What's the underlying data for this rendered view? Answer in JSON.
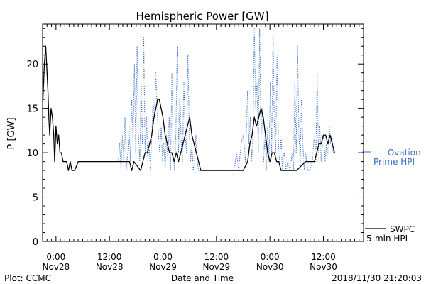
{
  "chart_data": {
    "type": "line",
    "title": "Hemispheric Power [GW]",
    "ylabel": "P [GW]",
    "xlabel": "Date and Time",
    "ylim": [
      0,
      24.5
    ],
    "xlim_hours_from_nov28_0000": [
      -3,
      69
    ],
    "y_ticks": [
      "0",
      "5",
      "10",
      "15",
      "20"
    ],
    "x_ticks": [
      {
        "time": "0:00",
        "date": "Nov28"
      },
      {
        "time": "12:00",
        "date": "Nov28"
      },
      {
        "time": "0:00",
        "date": "Nov29"
      },
      {
        "time": "12:00",
        "date": "Nov29"
      },
      {
        "time": "0:00",
        "date": "Nov30"
      },
      {
        "time": "12:00",
        "date": "Nov30"
      }
    ],
    "series": [
      {
        "name": "SWPC 5-min HPI",
        "legend_line1": "SWPC",
        "legend_line2": "5-min HPI",
        "color": "#000000",
        "style": "solid",
        "points_hours_gw": [
          [
            -3.0,
            15
          ],
          [
            -2.6,
            20
          ],
          [
            -2.3,
            22
          ],
          [
            -2.0,
            19
          ],
          [
            -1.8,
            17
          ],
          [
            -1.6,
            14
          ],
          [
            -1.4,
            12
          ],
          [
            -1.1,
            15
          ],
          [
            -0.8,
            14
          ],
          [
            -0.5,
            12
          ],
          [
            -0.3,
            9
          ],
          [
            0.0,
            13
          ],
          [
            0.3,
            11
          ],
          [
            0.6,
            12
          ],
          [
            0.9,
            10
          ],
          [
            1.2,
            10
          ],
          [
            1.6,
            9
          ],
          [
            2.0,
            9
          ],
          [
            2.4,
            9
          ],
          [
            2.8,
            8
          ],
          [
            3.2,
            9
          ],
          [
            3.6,
            8
          ],
          [
            4.2,
            8
          ],
          [
            5.0,
            9
          ],
          [
            8.0,
            9
          ],
          [
            12.0,
            9
          ],
          [
            16.5,
            9
          ],
          [
            17.0,
            8
          ],
          [
            17.5,
            9
          ],
          [
            19.0,
            8
          ],
          [
            20.0,
            10
          ],
          [
            20.5,
            10
          ],
          [
            21.0,
            11
          ],
          [
            21.5,
            12
          ],
          [
            22.0,
            14
          ],
          [
            22.4,
            15
          ],
          [
            22.8,
            16
          ],
          [
            23.2,
            16
          ],
          [
            23.6,
            15
          ],
          [
            24.0,
            14
          ],
          [
            24.5,
            12
          ],
          [
            25.0,
            11
          ],
          [
            25.5,
            10
          ],
          [
            26.0,
            10
          ],
          [
            26.5,
            9
          ],
          [
            27.0,
            10
          ],
          [
            27.5,
            9
          ],
          [
            28.0,
            10
          ],
          [
            28.5,
            11
          ],
          [
            29.0,
            12
          ],
          [
            29.5,
            13
          ],
          [
            30.0,
            14
          ],
          [
            30.5,
            12
          ],
          [
            31.0,
            11
          ],
          [
            31.5,
            10
          ],
          [
            32.0,
            9
          ],
          [
            32.5,
            8
          ],
          [
            34.0,
            8
          ],
          [
            36.0,
            8
          ],
          [
            38.0,
            8
          ],
          [
            40.0,
            8
          ],
          [
            42.0,
            8
          ],
          [
            43.0,
            9
          ],
          [
            43.5,
            11
          ],
          [
            44.0,
            12
          ],
          [
            44.5,
            14
          ],
          [
            45.0,
            13
          ],
          [
            45.5,
            14
          ],
          [
            46.0,
            15
          ],
          [
            46.5,
            14
          ],
          [
            47.0,
            12
          ],
          [
            47.5,
            10
          ],
          [
            48.0,
            9
          ],
          [
            48.5,
            10
          ],
          [
            49.0,
            10
          ],
          [
            49.5,
            9
          ],
          [
            50.0,
            9
          ],
          [
            50.5,
            8
          ],
          [
            52.0,
            8
          ],
          [
            54.0,
            8
          ],
          [
            56.0,
            9
          ],
          [
            58.0,
            9
          ],
          [
            58.5,
            10
          ],
          [
            59.0,
            11
          ],
          [
            59.5,
            11
          ],
          [
            60.0,
            12
          ],
          [
            60.5,
            12
          ],
          [
            61.0,
            11
          ],
          [
            61.5,
            12
          ],
          [
            62.0,
            11
          ],
          [
            62.5,
            10
          ]
        ]
      },
      {
        "name": "Ovation Prime HPI",
        "legend_line1": "— Ovation",
        "legend_line2": "Prime HPI",
        "color": "#3a6fc4",
        "style": "dotted",
        "points_hours_gw": [
          [
            14.0,
            9
          ],
          [
            14.3,
            11
          ],
          [
            14.6,
            8
          ],
          [
            14.9,
            12
          ],
          [
            15.2,
            9
          ],
          [
            15.5,
            14
          ],
          [
            15.8,
            8
          ],
          [
            16.1,
            10
          ],
          [
            16.4,
            13
          ],
          [
            16.7,
            9
          ],
          [
            17.0,
            16
          ],
          [
            17.3,
            11
          ],
          [
            17.6,
            20
          ],
          [
            17.9,
            10
          ],
          [
            18.2,
            22
          ],
          [
            18.5,
            12
          ],
          [
            18.8,
            9
          ],
          [
            19.1,
            18
          ],
          [
            19.4,
            11
          ],
          [
            19.7,
            23
          ],
          [
            20.0,
            10
          ],
          [
            20.3,
            14
          ],
          [
            20.6,
            9
          ],
          [
            20.9,
            11
          ],
          [
            21.2,
            8
          ],
          [
            21.5,
            12
          ],
          [
            21.8,
            16
          ],
          [
            22.1,
            14
          ],
          [
            22.4,
            19
          ],
          [
            22.7,
            15
          ],
          [
            23.0,
            12
          ],
          [
            23.3,
            10
          ],
          [
            23.6,
            13
          ],
          [
            23.9,
            9
          ],
          [
            24.2,
            11
          ],
          [
            24.5,
            8
          ],
          [
            24.8,
            12
          ],
          [
            25.1,
            9
          ],
          [
            25.4,
            14
          ],
          [
            25.7,
            8
          ],
          [
            26.0,
            19
          ],
          [
            26.3,
            10
          ],
          [
            26.6,
            8
          ],
          [
            26.9,
            12
          ],
          [
            27.2,
            22
          ],
          [
            27.5,
            10
          ],
          [
            27.8,
            17
          ],
          [
            28.1,
            11
          ],
          [
            28.4,
            9
          ],
          [
            28.7,
            18
          ],
          [
            29.0,
            12
          ],
          [
            29.3,
            10
          ],
          [
            29.6,
            21
          ],
          [
            29.9,
            13
          ],
          [
            30.2,
            9
          ],
          [
            30.5,
            11
          ],
          [
            30.8,
            8
          ],
          [
            31.1,
            9
          ],
          [
            31.4,
            12
          ],
          [
            31.7,
            9
          ],
          [
            32.0,
            8
          ],
          [
            33.0,
            8
          ],
          [
            34.0,
            8
          ],
          [
            36.0,
            8
          ],
          [
            38.0,
            8
          ],
          [
            40.0,
            8
          ],
          [
            40.5,
            10
          ],
          [
            41.0,
            8
          ],
          [
            41.5,
            11
          ],
          [
            42.0,
            12
          ],
          [
            42.5,
            9
          ],
          [
            43.0,
            17
          ],
          [
            43.3,
            11
          ],
          [
            43.6,
            14
          ],
          [
            43.9,
            9
          ],
          [
            44.2,
            12
          ],
          [
            44.5,
            24
          ],
          [
            44.8,
            15
          ],
          [
            45.1,
            18
          ],
          [
            45.4,
            10
          ],
          [
            45.7,
            24
          ],
          [
            46.0,
            12
          ],
          [
            46.3,
            15
          ],
          [
            46.6,
            9
          ],
          [
            46.9,
            12
          ],
          [
            47.2,
            8
          ],
          [
            47.5,
            13
          ],
          [
            47.8,
            9
          ],
          [
            48.1,
            18
          ],
          [
            48.4,
            10
          ],
          [
            48.7,
            24
          ],
          [
            49.0,
            13
          ],
          [
            49.3,
            10
          ],
          [
            49.6,
            21
          ],
          [
            49.9,
            11
          ],
          [
            50.2,
            9
          ],
          [
            50.5,
            12
          ],
          [
            50.8,
            8
          ],
          [
            51.2,
            10
          ],
          [
            51.6,
            8
          ],
          [
            52.0,
            9
          ],
          [
            52.5,
            8
          ],
          [
            53.0,
            10
          ],
          [
            53.3,
            8
          ],
          [
            53.6,
            18
          ],
          [
            53.9,
            10
          ],
          [
            54.2,
            22
          ],
          [
            54.5,
            12
          ],
          [
            54.8,
            9
          ],
          [
            55.1,
            16
          ],
          [
            55.4,
            11
          ],
          [
            55.7,
            8
          ],
          [
            56.0,
            10
          ],
          [
            56.5,
            8
          ],
          [
            57.0,
            8
          ],
          [
            57.5,
            9
          ],
          [
            58.0,
            12
          ],
          [
            58.3,
            9
          ],
          [
            58.6,
            19
          ],
          [
            58.9,
            10
          ],
          [
            59.2,
            13
          ],
          [
            59.5,
            9
          ],
          [
            59.8,
            11
          ],
          [
            60.1,
            12
          ],
          [
            60.4,
            9
          ],
          [
            60.7,
            11
          ],
          [
            61.0,
            10
          ],
          [
            61.3,
            13
          ],
          [
            61.6,
            11
          ],
          [
            61.9,
            12
          ],
          [
            62.2,
            10
          ],
          [
            62.5,
            10
          ]
        ]
      }
    ],
    "grid": false,
    "legend": "right"
  },
  "footer": {
    "plot_credit": "Plot: CCMC",
    "timestamp": "2018/11/30 21:20:03"
  }
}
